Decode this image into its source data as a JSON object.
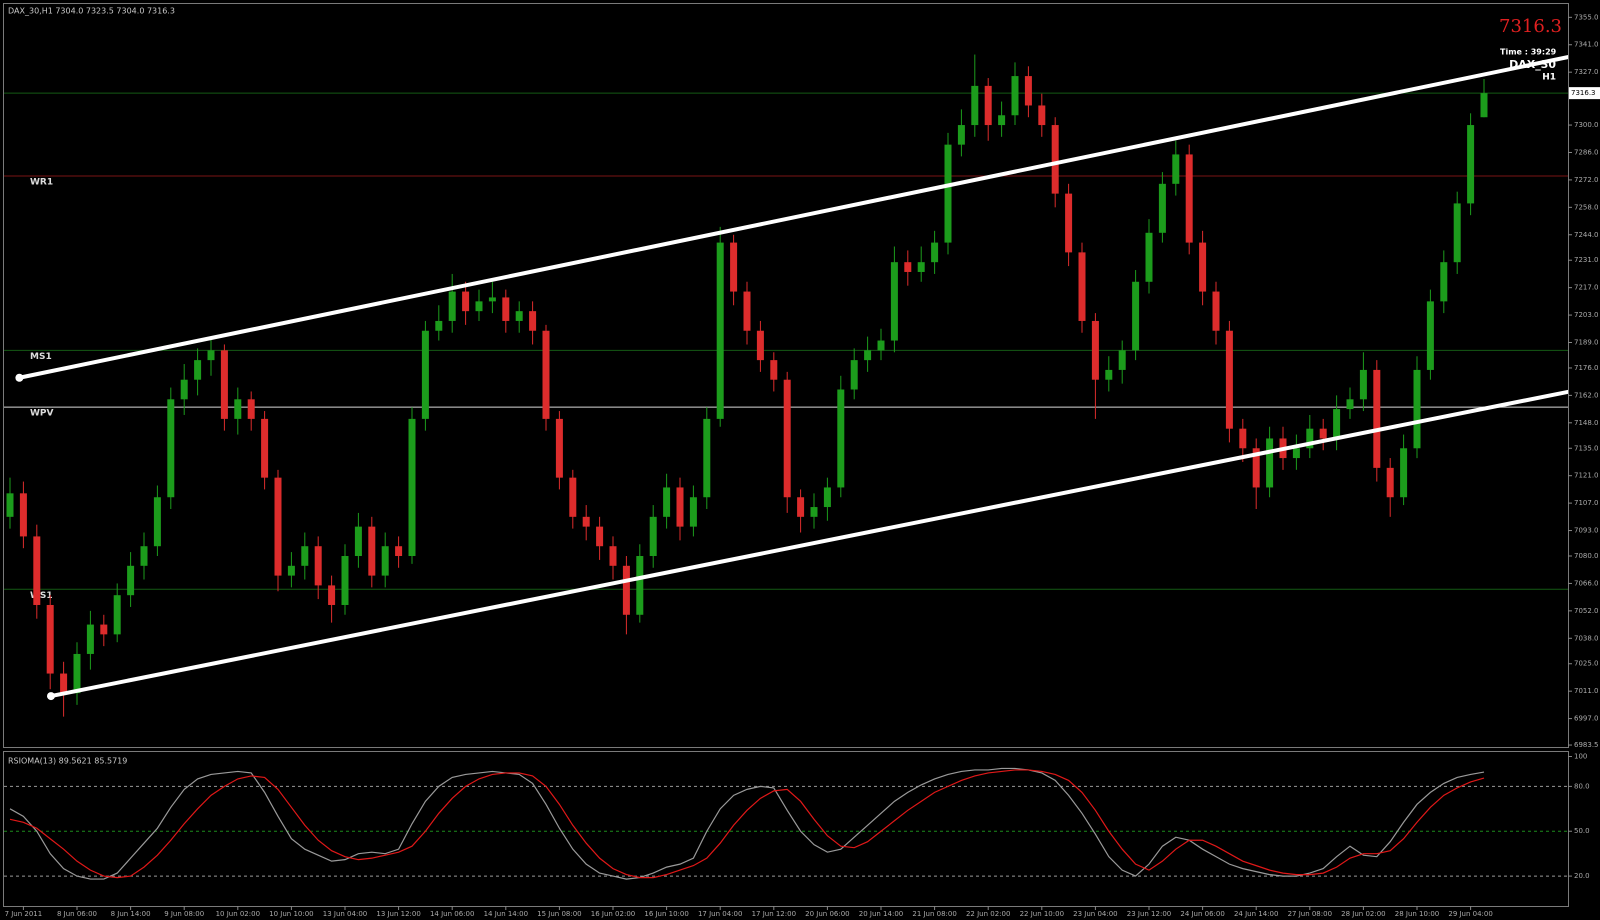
{
  "chart_data": [
    {
      "type": "candlestick",
      "title": "DAX_30,H1  7304.0 7323.5 7304.0 7316.3",
      "symbol": "DAX_30",
      "timeframe": "H1",
      "time_label": "Time :  39:29",
      "up_color": "#1c9c1c",
      "down_color": "#dd2c2c",
      "categories": [
        null,
        "7 Jun 2011",
        null,
        null,
        null,
        "8 Jun 06:00",
        null,
        null,
        null,
        "8 Jun 14:00",
        null,
        null,
        null,
        "9 Jun 08:00",
        null,
        null,
        null,
        "10 Jun 02:00",
        null,
        null,
        null,
        "10 Jun 10:00",
        null,
        null,
        null,
        "13 Jun 04:00",
        null,
        null,
        null,
        "13 Jun 12:00",
        null,
        null,
        null,
        "14 Jun 06:00",
        null,
        null,
        null,
        "14 Jun 14:00",
        null,
        null,
        null,
        "15 Jun 08:00",
        null,
        null,
        null,
        "16 Jun 02:00",
        null,
        null,
        null,
        "16 Jun 10:00",
        null,
        null,
        null,
        "17 Jun 04:00",
        null,
        null,
        null,
        "17 Jun 12:00",
        null,
        null,
        null,
        "20 Jun 06:00",
        null,
        null,
        null,
        "20 Jun 14:00",
        null,
        null,
        null,
        "21 Jun 08:00",
        null,
        null,
        null,
        "22 Jun 02:00",
        null,
        null,
        null,
        "22 Jun 10:00",
        null,
        null,
        null,
        "23 Jun 04:00",
        null,
        null,
        null,
        "23 Jun 12:00",
        null,
        null,
        null,
        "24 Jun 06:00",
        null,
        null,
        null,
        "24 Jun 14:00",
        null,
        null,
        null,
        "27 Jun 08:00",
        null,
        null,
        null,
        "28 Jun 02:00",
        null,
        null,
        null,
        "28 Jun 10:00",
        null,
        null,
        null,
        "29 Jun 04:00",
        null
      ],
      "ohlc": [
        [
          7100,
          7120,
          7094,
          7112
        ],
        [
          7112,
          7118,
          7084,
          7090
        ],
        [
          7090,
          7096,
          7048,
          7055
        ],
        [
          7055,
          7060,
          7012,
          7020
        ],
        [
          7020,
          7026,
          6998,
          7010
        ],
        [
          7010,
          7036,
          7004,
          7030
        ],
        [
          7030,
          7052,
          7022,
          7045
        ],
        [
          7045,
          7050,
          7034,
          7040
        ],
        [
          7040,
          7066,
          7036,
          7060
        ],
        [
          7060,
          7082,
          7054,
          7075
        ],
        [
          7075,
          7092,
          7068,
          7085
        ],
        [
          7085,
          7116,
          7080,
          7110
        ],
        [
          7110,
          7166,
          7104,
          7160
        ],
        [
          7160,
          7178,
          7152,
          7170
        ],
        [
          7170,
          7186,
          7162,
          7180
        ],
        [
          7180,
          7192,
          7172,
          7185
        ],
        [
          7185,
          7188,
          7144,
          7150
        ],
        [
          7150,
          7166,
          7142,
          7160
        ],
        [
          7160,
          7164,
          7144,
          7150
        ],
        [
          7150,
          7154,
          7114,
          7120
        ],
        [
          7120,
          7124,
          7062,
          7070
        ],
        [
          7070,
          7082,
          7064,
          7075
        ],
        [
          7075,
          7092,
          7068,
          7085
        ],
        [
          7085,
          7090,
          7058,
          7065
        ],
        [
          7065,
          7070,
          7046,
          7055
        ],
        [
          7055,
          7086,
          7050,
          7080
        ],
        [
          7080,
          7102,
          7074,
          7095
        ],
        [
          7095,
          7100,
          7064,
          7070
        ],
        [
          7070,
          7092,
          7064,
          7085
        ],
        [
          7085,
          7090,
          7074,
          7080
        ],
        [
          7080,
          7156,
          7076,
          7150
        ],
        [
          7150,
          7200,
          7144,
          7195
        ],
        [
          7195,
          7208,
          7190,
          7200
        ],
        [
          7200,
          7224,
          7194,
          7215
        ],
        [
          7215,
          7220,
          7198,
          7205
        ],
        [
          7205,
          7216,
          7200,
          7210
        ],
        [
          7210,
          7220,
          7204,
          7212
        ],
        [
          7212,
          7216,
          7194,
          7200
        ],
        [
          7200,
          7210,
          7194,
          7205
        ],
        [
          7205,
          7210,
          7188,
          7195
        ],
        [
          7195,
          7198,
          7144,
          7150
        ],
        [
          7150,
          7154,
          7114,
          7120
        ],
        [
          7120,
          7124,
          7094,
          7100
        ],
        [
          7100,
          7106,
          7088,
          7095
        ],
        [
          7095,
          7100,
          7078,
          7085
        ],
        [
          7085,
          7090,
          7068,
          7075
        ],
        [
          7075,
          7080,
          7040,
          7050
        ],
        [
          7050,
          7086,
          7046,
          7080
        ],
        [
          7080,
          7106,
          7074,
          7100
        ],
        [
          7100,
          7122,
          7094,
          7115
        ],
        [
          7115,
          7120,
          7088,
          7095
        ],
        [
          7095,
          7116,
          7090,
          7110
        ],
        [
          7110,
          7156,
          7104,
          7150
        ],
        [
          7150,
          7248,
          7146,
          7240
        ],
        [
          7240,
          7244,
          7208,
          7215
        ],
        [
          7215,
          7220,
          7188,
          7195
        ],
        [
          7195,
          7200,
          7174,
          7180
        ],
        [
          7180,
          7184,
          7164,
          7170
        ],
        [
          7170,
          7174,
          7102,
          7110
        ],
        [
          7110,
          7114,
          7092,
          7100
        ],
        [
          7100,
          7112,
          7094,
          7105
        ],
        [
          7105,
          7120,
          7098,
          7115
        ],
        [
          7115,
          7172,
          7110,
          7165
        ],
        [
          7165,
          7186,
          7160,
          7180
        ],
        [
          7180,
          7192,
          7174,
          7185
        ],
        [
          7185,
          7196,
          7180,
          7190
        ],
        [
          7190,
          7238,
          7184,
          7230
        ],
        [
          7230,
          7236,
          7218,
          7225
        ],
        [
          7225,
          7238,
          7220,
          7230
        ],
        [
          7230,
          7246,
          7224,
          7240
        ],
        [
          7240,
          7296,
          7234,
          7290
        ],
        [
          7290,
          7308,
          7284,
          7300
        ],
        [
          7300,
          7336,
          7294,
          7320
        ],
        [
          7320,
          7324,
          7292,
          7300
        ],
        [
          7300,
          7312,
          7294,
          7305
        ],
        [
          7305,
          7332,
          7300,
          7325
        ],
        [
          7325,
          7330,
          7304,
          7310
        ],
        [
          7310,
          7316,
          7294,
          7300
        ],
        [
          7300,
          7304,
          7258,
          7265
        ],
        [
          7265,
          7270,
          7228,
          7235
        ],
        [
          7235,
          7240,
          7194,
          7200
        ],
        [
          7200,
          7204,
          7150,
          7170
        ],
        [
          7170,
          7182,
          7164,
          7175
        ],
        [
          7175,
          7190,
          7168,
          7185
        ],
        [
          7185,
          7226,
          7180,
          7220
        ],
        [
          7220,
          7252,
          7214,
          7245
        ],
        [
          7245,
          7276,
          7240,
          7270
        ],
        [
          7270,
          7292,
          7264,
          7285
        ],
        [
          7285,
          7290,
          7234,
          7240
        ],
        [
          7240,
          7246,
          7208,
          7215
        ],
        [
          7215,
          7220,
          7188,
          7195
        ],
        [
          7195,
          7200,
          7138,
          7145
        ],
        [
          7145,
          7150,
          7128,
          7135
        ],
        [
          7135,
          7140,
          7104,
          7115
        ],
        [
          7115,
          7146,
          7110,
          7140
        ],
        [
          7140,
          7146,
          7124,
          7130
        ],
        [
          7130,
          7142,
          7124,
          7135
        ],
        [
          7135,
          7152,
          7130,
          7145
        ],
        [
          7145,
          7150,
          7134,
          7140
        ],
        [
          7140,
          7162,
          7134,
          7155
        ],
        [
          7155,
          7166,
          7150,
          7160
        ],
        [
          7160,
          7184,
          7154,
          7175
        ],
        [
          7175,
          7180,
          7118,
          7125
        ],
        [
          7125,
          7130,
          7100,
          7110
        ],
        [
          7110,
          7142,
          7106,
          7135
        ],
        [
          7135,
          7182,
          7130,
          7175
        ],
        [
          7175,
          7216,
          7170,
          7210
        ],
        [
          7210,
          7236,
          7204,
          7230
        ],
        [
          7230,
          7266,
          7224,
          7260
        ],
        [
          7260,
          7306,
          7254,
          7300
        ],
        [
          7304,
          7323.5,
          7304,
          7316.3
        ]
      ],
      "ylim": [
        6982.5,
        7361.8
      ],
      "yticks": [
        {
          "value": 6983.5,
          "label": "6983.5"
        },
        {
          "value": 6997,
          "label": "6997.0"
        },
        {
          "value": 7011,
          "label": "7011.0"
        },
        {
          "value": 7025,
          "label": "7025.0"
        },
        {
          "value": 7038,
          "label": "7038.0"
        },
        {
          "value": 7052,
          "label": "7052.0"
        },
        {
          "value": 7066,
          "label": "7066.0"
        },
        {
          "value": 7080,
          "label": "7080.0"
        },
        {
          "value": 7093,
          "label": "7093.0"
        },
        {
          "value": 7107,
          "label": "7107.0"
        },
        {
          "value": 7121,
          "label": "7121.0"
        },
        {
          "value": 7135,
          "label": "7135.0"
        },
        {
          "value": 7148,
          "label": "7148.0"
        },
        {
          "value": 7162,
          "label": "7162.0"
        },
        {
          "value": 7176,
          "label": "7176.0"
        },
        {
          "value": 7189,
          "label": "7189.0"
        },
        {
          "value": 7203,
          "label": "7203.0"
        },
        {
          "value": 7217,
          "label": "7217.0"
        },
        {
          "value": 7231,
          "label": "7231.0"
        },
        {
          "value": 7244,
          "label": "7244.0"
        },
        {
          "value": 7258,
          "label": "7258.0"
        },
        {
          "value": 7272,
          "label": "7272.0"
        },
        {
          "value": 7286,
          "label": "7286.0"
        },
        {
          "value": 7300,
          "label": "7300.0"
        },
        {
          "value": 7327,
          "label": "7327.0"
        },
        {
          "value": 7341,
          "label": "7341.0"
        },
        {
          "value": 7355,
          "label": "7355.0"
        }
      ],
      "levels": [
        {
          "label": "WR1",
          "value": 7274,
          "color": "#7a1414"
        },
        {
          "label": "MS1",
          "value": 7185,
          "color": "#145a14"
        },
        {
          "label": "WPV",
          "value": 7156,
          "color": "#d8d8d8"
        },
        {
          "label": "WS1",
          "value": 7063,
          "color": "#145a14"
        }
      ],
      "trendlines": [
        {
          "x": [
            0.7,
            118.6
          ],
          "y": [
            7171,
            7338
          ]
        },
        {
          "x": [
            3.06,
            118.6
          ],
          "y": [
            7008.5,
            7167
          ]
        }
      ]
    },
    {
      "type": "line",
      "title": "RSIOMA(13) 89.5621 85.5719",
      "series": [
        {
          "color": "#9a9a9a",
          "values": [
            65,
            60,
            50,
            35,
            25,
            20,
            18,
            18,
            22,
            32,
            42,
            52,
            66,
            78,
            85,
            88,
            89,
            90,
            89,
            76,
            60,
            45,
            38,
            34,
            30,
            31,
            35,
            36,
            35,
            38,
            55,
            70,
            80,
            86,
            88,
            89,
            90,
            89,
            88,
            82,
            68,
            52,
            38,
            28,
            22,
            20,
            18,
            19,
            22,
            26,
            28,
            32,
            50,
            65,
            74,
            78,
            80,
            79,
            64,
            50,
            41,
            36,
            38,
            46,
            54,
            62,
            70,
            76,
            81,
            85,
            88,
            90,
            91,
            91,
            92,
            92,
            91,
            89,
            84,
            74,
            62,
            48,
            33,
            24,
            20,
            28,
            40,
            46,
            44,
            38,
            33,
            28,
            25,
            23,
            21,
            20,
            20,
            22,
            25,
            33,
            40,
            34,
            33,
            43,
            56,
            68,
            76,
            82,
            86,
            88,
            89.5621
          ]
        },
        {
          "color": "#e01818",
          "values": [
            58,
            56,
            52,
            45,
            38,
            30,
            24,
            20,
            19,
            20,
            26,
            34,
            44,
            55,
            65,
            74,
            80,
            85,
            87,
            86,
            78,
            66,
            54,
            44,
            37,
            33,
            31,
            32,
            34,
            36,
            40,
            50,
            62,
            72,
            80,
            85,
            88,
            89,
            89,
            87,
            80,
            68,
            54,
            42,
            32,
            25,
            21,
            19,
            19,
            21,
            24,
            27,
            32,
            42,
            54,
            64,
            72,
            77,
            78,
            70,
            58,
            47,
            40,
            39,
            43,
            50,
            57,
            64,
            70,
            76,
            80,
            84,
            87,
            89,
            90,
            91,
            91,
            90,
            88,
            84,
            76,
            64,
            50,
            38,
            28,
            24,
            30,
            38,
            44,
            44,
            40,
            35,
            30,
            27,
            24,
            22,
            21,
            21,
            22,
            26,
            32,
            35,
            35,
            37,
            45,
            56,
            66,
            74,
            79,
            83,
            85.5719
          ]
        }
      ],
      "ylim": [
        0,
        103
      ],
      "yticks": [
        100,
        {
          "value": 80,
          "label": "80.0"
        },
        {
          "value": 50,
          "label": "50.0"
        },
        {
          "value": 20,
          "label": "20.0"
        }
      ]
    }
  ]
}
